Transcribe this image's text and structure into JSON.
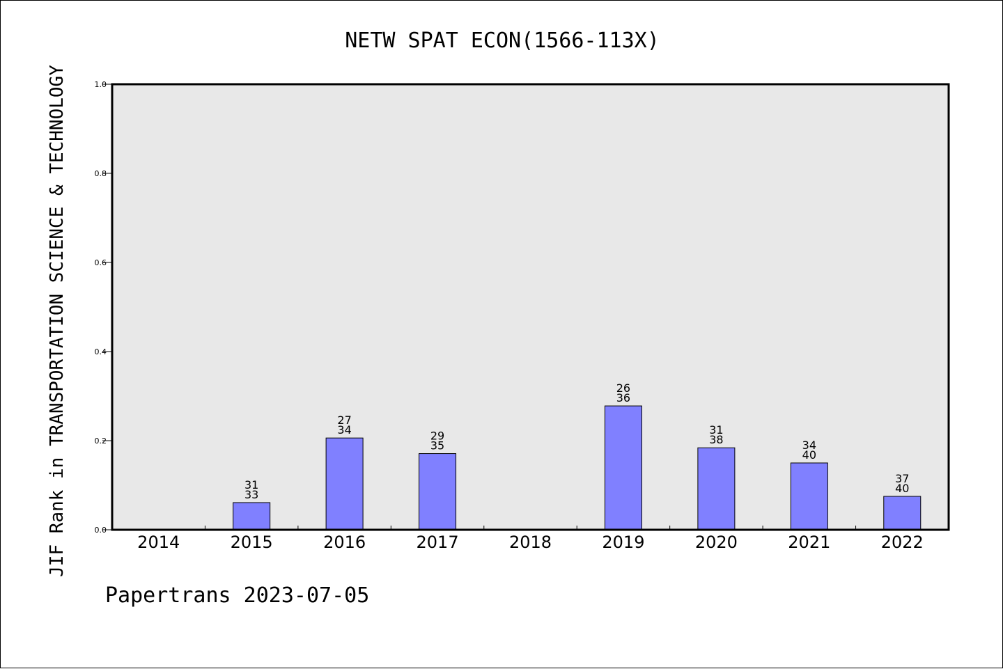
{
  "chart_data": {
    "type": "bar",
    "title": "NETW SPAT ECON(1566-113X)",
    "xlabel": "",
    "ylabel": "JIF Rank in TRANSPORTATION SCIENCE & TECHNOLOGY",
    "ylim": [
      0,
      1.0
    ],
    "yticks": [
      "0.0",
      "0.2",
      "0.4",
      "0.6",
      "0.8",
      "1.0"
    ],
    "categories": [
      "2014",
      "2015",
      "2016",
      "2017",
      "2018",
      "2019",
      "2020",
      "2021",
      "2022"
    ],
    "values": [
      null,
      0.061,
      0.206,
      0.171,
      null,
      0.278,
      0.184,
      0.15,
      0.075
    ],
    "rank_labels": [
      null,
      [
        "31",
        "33"
      ],
      [
        "27",
        "34"
      ],
      [
        "29",
        "35"
      ],
      null,
      [
        "26",
        "36"
      ],
      [
        "31",
        "38"
      ],
      [
        "34",
        "40"
      ],
      [
        "37",
        "40"
      ]
    ],
    "grid": false,
    "bar_color": "#8080ff",
    "plot_background": "#e8e8e8"
  },
  "footer": "Papertrans 2023-07-05"
}
